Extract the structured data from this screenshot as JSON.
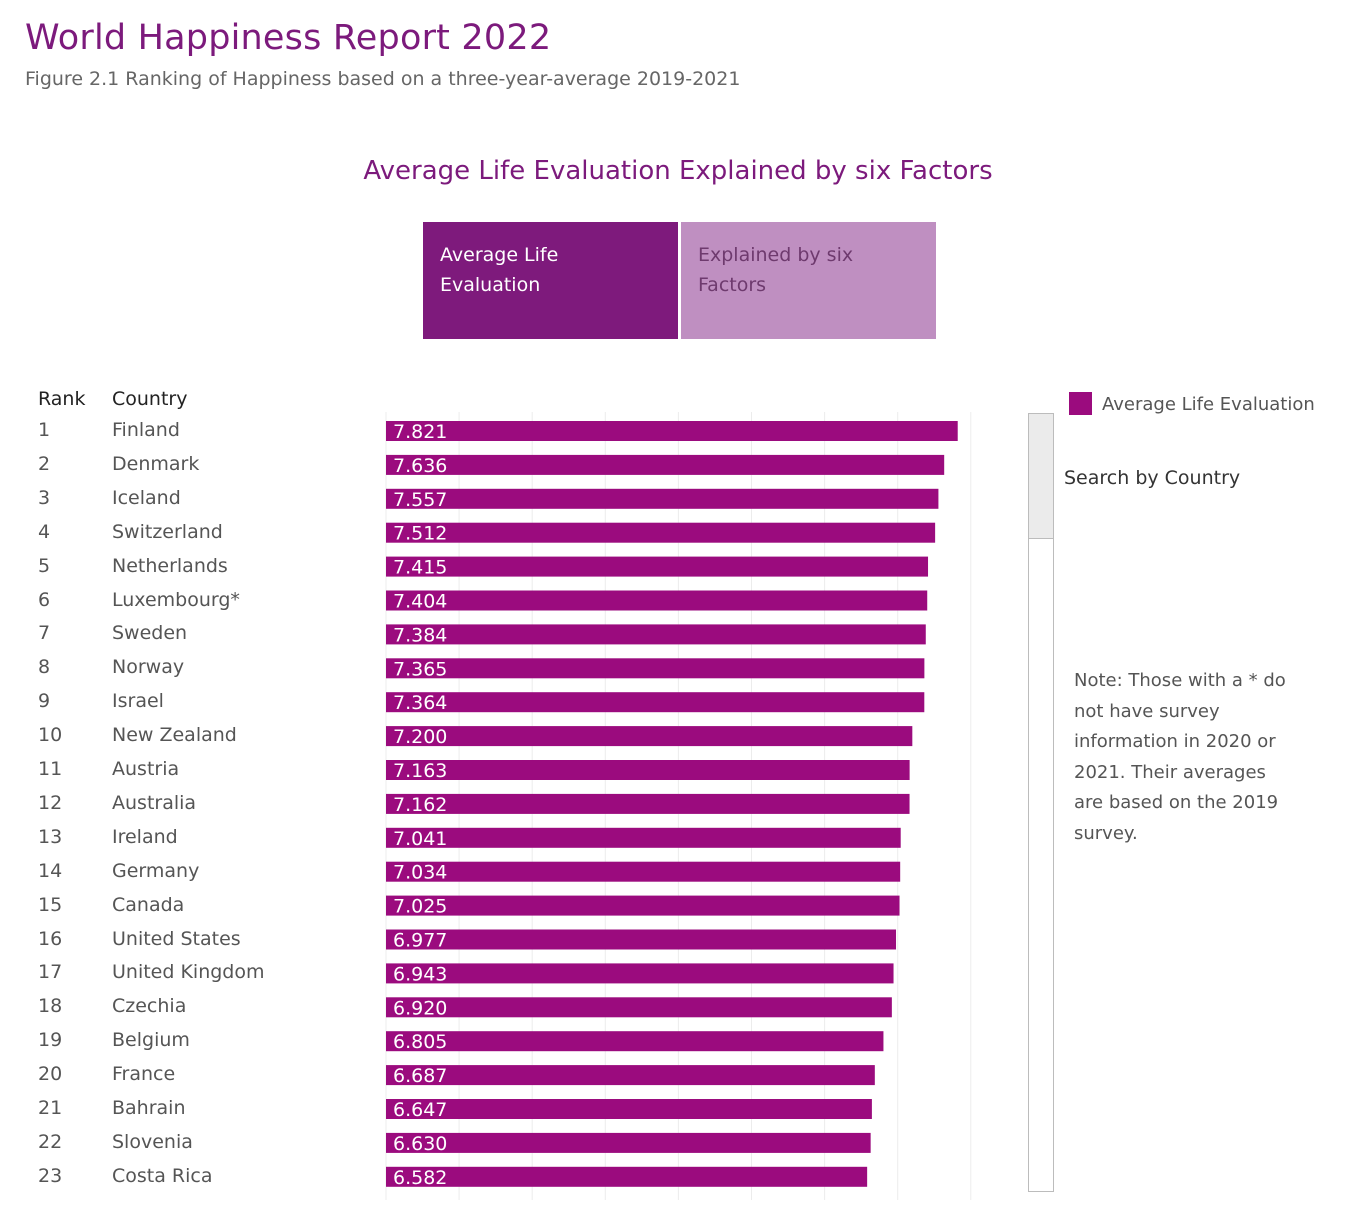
{
  "header": {
    "title": "World Happiness Report 2022",
    "subtitle": "Figure 2.1 Ranking of Happiness based on a three-year-average 2019-2021"
  },
  "chart_heading": "Average Life Evaluation Explained by six Factors",
  "toggles": {
    "active_label": "Average Life Evaluation",
    "inactive_label": "Explained by six Factors"
  },
  "table": {
    "rank_header": "Rank",
    "country_header": "Country"
  },
  "legend": {
    "label": "Average Life Evaluation",
    "color": "#9b0b7e"
  },
  "search": {
    "label": "Search by Country"
  },
  "note": "Note: Those with a * do not have survey information in 2020 or 2021. Their averages are based on the 2019 survey.",
  "chart_data": {
    "type": "bar",
    "orientation": "horizontal",
    "series_name": "Average Life Evaluation",
    "xlim": [
      0,
      8
    ],
    "gridlines": true,
    "ranks": [
      "1",
      "2",
      "3",
      "4",
      "5",
      "6",
      "7",
      "8",
      "9",
      "10",
      "11",
      "12",
      "13",
      "14",
      "15",
      "16",
      "17",
      "18",
      "19",
      "20",
      "21",
      "22",
      "23"
    ],
    "categories": [
      "Finland",
      "Denmark",
      "Iceland",
      "Switzerland",
      "Netherlands",
      "Luxembourg*",
      "Sweden",
      "Norway",
      "Israel",
      "New Zealand",
      "Austria",
      "Australia",
      "Ireland",
      "Germany",
      "Canada",
      "United States",
      "United Kingdom",
      "Czechia",
      "Belgium",
      "France",
      "Bahrain",
      "Slovenia",
      "Costa Rica"
    ],
    "values": [
      7.821,
      7.636,
      7.557,
      7.512,
      7.415,
      7.404,
      7.384,
      7.365,
      7.364,
      7.2,
      7.163,
      7.162,
      7.041,
      7.034,
      7.025,
      6.977,
      6.943,
      6.92,
      6.805,
      6.687,
      6.647,
      6.63,
      6.582
    ],
    "value_labels": [
      "7.821",
      "7.636",
      "7.557",
      "7.512",
      "7.415",
      "7.404",
      "7.384",
      "7.365",
      "7.364",
      "7.200",
      "7.163",
      "7.162",
      "7.041",
      "7.034",
      "7.025",
      "6.977",
      "6.943",
      "6.920",
      "6.805",
      "6.687",
      "6.647",
      "6.630",
      "6.582"
    ]
  }
}
